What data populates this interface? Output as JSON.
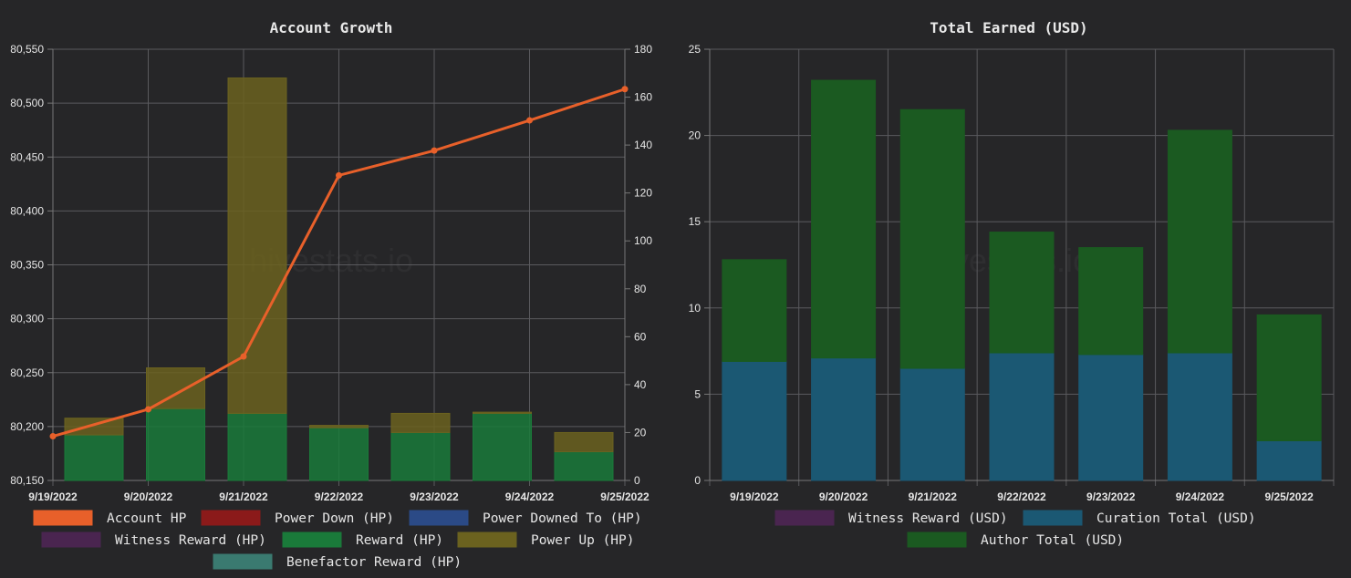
{
  "watermark": "hivestats.io",
  "chart_data": [
    {
      "type": "bar",
      "title": "Account Growth",
      "categories": [
        "9/19/2022",
        "9/20/2022",
        "9/21/2022",
        "9/22/2022",
        "9/23/2022",
        "9/24/2022",
        "9/25/2022"
      ],
      "y_left_ticks": [
        "80,550",
        "80,500",
        "80,450",
        "80,400",
        "80,350",
        "80,300",
        "80,250",
        "80,200",
        "80,150"
      ],
      "y_left_range": [
        80150,
        80550
      ],
      "y_right_ticks": [
        "180",
        "160",
        "140",
        "120",
        "100",
        "80",
        "60",
        "40",
        "20",
        "0"
      ],
      "y_right_range": [
        0,
        180
      ],
      "series": [
        {
          "name": "Account HP",
          "type": "line",
          "axis": "left",
          "color": "#e8602a",
          "values": [
            80191,
            80216,
            80265,
            80433,
            80456,
            80484,
            80513
          ]
        },
        {
          "name": "Power Down (HP)",
          "type": "bar",
          "axis": "right",
          "color": "#8b1a1a",
          "values": [
            0,
            0,
            0,
            0,
            0,
            0,
            0
          ]
        },
        {
          "name": "Power Downed To (HP)",
          "type": "bar",
          "axis": "right",
          "color": "#2b4a86",
          "values": [
            0,
            0,
            0,
            0,
            0,
            0,
            0
          ]
        },
        {
          "name": "Witness Reward (HP)",
          "type": "bar",
          "axis": "right",
          "color": "#4a2550",
          "values": [
            0,
            0,
            0,
            0,
            0,
            0,
            0
          ]
        },
        {
          "name": "Reward (HP)",
          "type": "bar",
          "axis": "right",
          "color": "#1a7a3a",
          "values": [
            19,
            30,
            28,
            22,
            20,
            28,
            12
          ]
        },
        {
          "name": "Power Up (HP)",
          "type": "bar",
          "axis": "right",
          "color": "#6b621f",
          "values": [
            7,
            17,
            140,
            1,
            8,
            0.5,
            8
          ]
        },
        {
          "name": "Benefactor Reward (HP)",
          "type": "bar",
          "axis": "right",
          "color": "#3a7a70",
          "values": [
            0,
            0,
            0,
            0,
            0,
            0,
            0
          ]
        }
      ]
    },
    {
      "type": "bar",
      "title": "Total Earned (USD)",
      "categories": [
        "9/19/2022",
        "9/20/2022",
        "9/21/2022",
        "9/22/2022",
        "9/23/2022",
        "9/24/2022",
        "9/25/2022"
      ],
      "y_ticks": [
        "25",
        "20",
        "15",
        "10",
        "5",
        "0"
      ],
      "y_range": [
        0,
        25
      ],
      "series": [
        {
          "name": "Witness Reward (USD)",
          "color": "#4a2550",
          "values": [
            0,
            0,
            0,
            0,
            0,
            0,
            0
          ]
        },
        {
          "name": "Curation Total (USD)",
          "color": "#1b5873",
          "values": [
            6.9,
            7.1,
            6.5,
            7.4,
            7.3,
            7.4,
            2.3
          ]
        },
        {
          "name": "Author Total (USD)",
          "color": "#1b5a21",
          "values": [
            5.9,
            16.1,
            15.0,
            7.0,
            6.2,
            12.9,
            7.3
          ]
        }
      ]
    }
  ]
}
